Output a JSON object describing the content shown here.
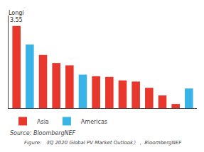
{
  "chart_data": {
    "type": "bar",
    "categories": [
      null,
      null,
      null,
      null,
      null,
      null,
      null,
      null,
      null,
      null,
      null,
      null,
      null,
      null
    ],
    "series": [
      {
        "name": "Asia",
        "color": "#e8372c",
        "values": [
          3.55,
          null,
          2.3,
          1.95,
          1.85,
          null,
          1.38,
          1.35,
          1.2,
          1.15,
          0.88,
          0.55,
          0.18,
          null
        ]
      },
      {
        "name": "Americas",
        "color": "#39b4e6",
        "values": [
          null,
          2.75,
          null,
          null,
          null,
          1.45,
          null,
          null,
          null,
          null,
          null,
          null,
          null,
          0.85
        ]
      }
    ],
    "ylim": [
      0,
      4.0
    ],
    "tick_labels": false,
    "grid": false,
    "legend": "bottom left",
    "annotations": [
      {
        "text": "Longi\n3.55",
        "x": 0,
        "y": 3.55
      }
    ],
    "source": "Source: BloombergNEF",
    "caption": "Figure: 《IQ 2020 Global PV Market Outlook》， BloombergNEF"
  }
}
